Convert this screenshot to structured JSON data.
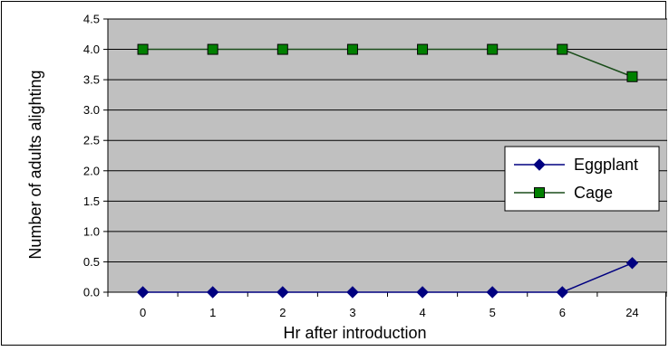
{
  "chart_data": {
    "type": "line",
    "title": "",
    "xlabel": "Hr after introduction",
    "ylabel": "Number of adults alighting",
    "categories": [
      "0",
      "1",
      "2",
      "3",
      "4",
      "5",
      "6",
      "24"
    ],
    "ylim": [
      0,
      4.5
    ],
    "yticks": [
      "0.0",
      "0.5",
      "1.0",
      "1.5",
      "2.0",
      "2.5",
      "3.0",
      "3.5",
      "4.0",
      "4.5"
    ],
    "grid": true,
    "legend_position": "right",
    "plot_background": "#c0c0c0",
    "series": [
      {
        "name": "Eggplant",
        "values": [
          0,
          0,
          0,
          0,
          0,
          0,
          0,
          0.48
        ],
        "color": "#000080",
        "marker": "diamond"
      },
      {
        "name": "Cage",
        "values": [
          4,
          4,
          4,
          4,
          4,
          4,
          4,
          3.55
        ],
        "color": "#1a4d1a",
        "marker_fill": "#008000",
        "marker": "square"
      }
    ]
  }
}
